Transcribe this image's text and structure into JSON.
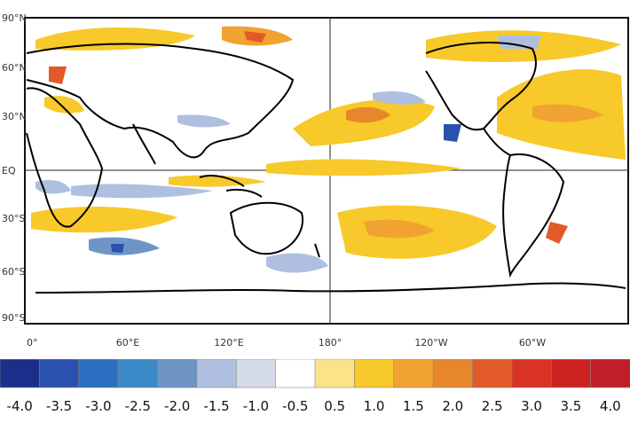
{
  "map": {
    "lon_ticks": [
      "0°",
      "60°E",
      "120°E",
      "180°",
      "120°W",
      "60°W"
    ],
    "lat_ticks": [
      "90°N",
      "60°N",
      "30°N",
      "EQ",
      "30°S",
      "60°S",
      "90°S"
    ],
    "grid": true
  },
  "colorbar": {
    "labels": [
      "-4.0",
      "-3.5",
      "-3.0",
      "-2.5",
      "-2.0",
      "-1.5",
      "-1.0",
      "-0.5",
      "0.5",
      "1.0",
      "1.5",
      "2.0",
      "2.5",
      "3.0",
      "3.5",
      "4.0"
    ],
    "colors": [
      "#1b2f8a",
      "#2a51ad",
      "#2c6fc0",
      "#3a8ac8",
      "#6f95c6",
      "#aebfe0",
      "#d5dae8",
      "#ffffff",
      "#fbe38a",
      "#f7c92a",
      "#f0a232",
      "#e8862b",
      "#e25a28",
      "#d93324",
      "#cc2222",
      "#c01f2a"
    ]
  }
}
